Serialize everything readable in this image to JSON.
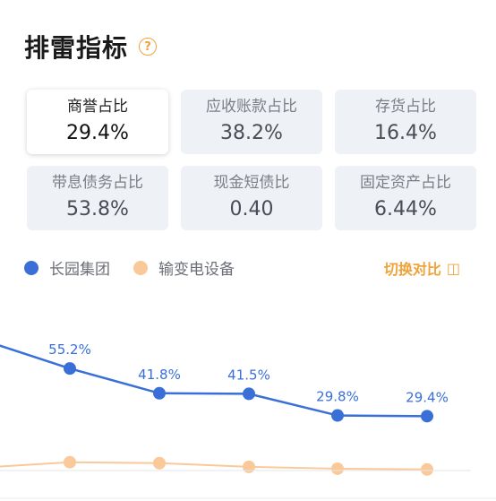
{
  "header": {
    "title": "排雷指标",
    "help_icon": "question-mark-icon",
    "help_glyph": "?"
  },
  "metrics": [
    {
      "label": "商誉占比",
      "value": "29.4%",
      "selected": true
    },
    {
      "label": "应收账款占比",
      "value": "38.2%",
      "selected": false
    },
    {
      "label": "存货占比",
      "value": "16.4%",
      "selected": false
    },
    {
      "label": "带息债务占比",
      "value": "53.8%",
      "selected": false
    },
    {
      "label": "现金短债比",
      "value": "0.40",
      "selected": false
    },
    {
      "label": "固定资产占比",
      "value": "6.44%",
      "selected": false
    }
  ],
  "legend": {
    "series1": "长园集团",
    "series2": "输变电设备"
  },
  "switch": {
    "label": "切换对比",
    "icon": "toggle-compare-icon",
    "glyph": "◫"
  },
  "colors": {
    "series1": "#3a6fd8",
    "series2": "#f9c99a",
    "accent": "#f0a23b"
  },
  "chart_data": {
    "type": "line",
    "series": [
      {
        "name": "长园集团",
        "values": [
          71.0,
          55.2,
          41.8,
          41.5,
          29.8,
          29.4
        ],
        "labels": [
          "",
          "55.2%",
          "41.8%",
          "41.5%",
          "29.8%",
          "29.4%"
        ]
      },
      {
        "name": "输变电设备",
        "values": [
          1.5,
          4.5,
          4.0,
          2.0,
          1.0,
          0.6
        ]
      }
    ],
    "ylim": [
      0,
      80
    ],
    "grid": false
  }
}
